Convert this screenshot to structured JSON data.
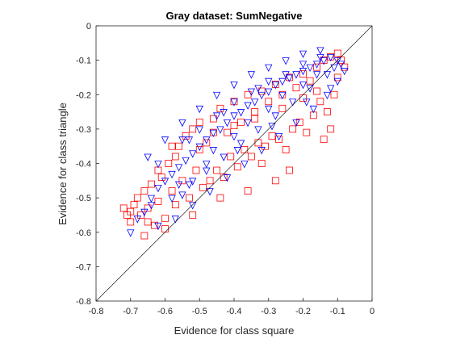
{
  "chart_data": {
    "type": "scatter",
    "title": "Gray dataset: SumNegative",
    "xlabel": "Evidence for class square",
    "ylabel": "Evidence for class triangle",
    "xlim": [
      -0.8,
      0
    ],
    "ylim": [
      -0.8,
      0
    ],
    "xticks": [
      "-0.8",
      "-0.7",
      "-0.6",
      "-0.5",
      "-0.4",
      "-0.3",
      "-0.2",
      "-0.1",
      "0"
    ],
    "yticks": [
      "-0.8",
      "-0.7",
      "-0.6",
      "-0.5",
      "-0.4",
      "-0.3",
      "-0.2",
      "-0.1",
      "0"
    ],
    "grid": false,
    "reference_line": {
      "from": [
        -0.8,
        -0.8
      ],
      "to": [
        0,
        0
      ]
    },
    "series": [
      {
        "marker": "square",
        "color": "#ff0000",
        "points": [
          [
            -0.72,
            -0.53
          ],
          [
            -0.71,
            -0.55
          ],
          [
            -0.7,
            -0.57
          ],
          [
            -0.7,
            -0.54
          ],
          [
            -0.69,
            -0.52
          ],
          [
            -0.68,
            -0.5
          ],
          [
            -0.67,
            -0.55
          ],
          [
            -0.66,
            -0.61
          ],
          [
            -0.66,
            -0.48
          ],
          [
            -0.65,
            -0.53
          ],
          [
            -0.64,
            -0.46
          ],
          [
            -0.63,
            -0.58
          ],
          [
            -0.62,
            -0.51
          ],
          [
            -0.61,
            -0.44
          ],
          [
            -0.6,
            -0.56
          ],
          [
            -0.59,
            -0.4
          ],
          [
            -0.58,
            -0.48
          ],
          [
            -0.57,
            -0.38
          ],
          [
            -0.57,
            -0.52
          ],
          [
            -0.56,
            -0.35
          ],
          [
            -0.55,
            -0.45
          ],
          [
            -0.54,
            -0.32
          ],
          [
            -0.53,
            -0.5
          ],
          [
            -0.52,
            -0.3
          ],
          [
            -0.51,
            -0.42
          ],
          [
            -0.5,
            -0.28
          ],
          [
            -0.49,
            -0.47
          ],
          [
            -0.48,
            -0.34
          ],
          [
            -0.47,
            -0.45
          ],
          [
            -0.46,
            -0.27
          ],
          [
            -0.45,
            -0.42
          ],
          [
            -0.44,
            -0.24
          ],
          [
            -0.43,
            -0.44
          ],
          [
            -0.42,
            -0.31
          ],
          [
            -0.41,
            -0.38
          ],
          [
            -0.4,
            -0.22
          ],
          [
            -0.39,
            -0.41
          ],
          [
            -0.38,
            -0.28
          ],
          [
            -0.37,
            -0.36
          ],
          [
            -0.36,
            -0.2
          ],
          [
            -0.35,
            -0.38
          ],
          [
            -0.34,
            -0.25
          ],
          [
            -0.33,
            -0.34
          ],
          [
            -0.32,
            -0.19
          ],
          [
            -0.31,
            -0.35
          ],
          [
            -0.3,
            -0.22
          ],
          [
            -0.29,
            -0.32
          ],
          [
            -0.28,
            -0.17
          ],
          [
            -0.27,
            -0.33
          ],
          [
            -0.26,
            -0.2
          ],
          [
            -0.25,
            -0.36
          ],
          [
            -0.24,
            -0.15
          ],
          [
            -0.23,
            -0.3
          ],
          [
            -0.22,
            -0.18
          ],
          [
            -0.21,
            -0.28
          ],
          [
            -0.2,
            -0.14
          ],
          [
            -0.19,
            -0.31
          ],
          [
            -0.18,
            -0.16
          ],
          [
            -0.17,
            -0.26
          ],
          [
            -0.16,
            -0.12
          ],
          [
            -0.15,
            -0.22
          ],
          [
            -0.14,
            -0.1
          ],
          [
            -0.13,
            -0.25
          ],
          [
            -0.12,
            -0.09
          ],
          [
            -0.11,
            -0.2
          ],
          [
            -0.1,
            -0.08
          ],
          [
            -0.1,
            -0.15
          ],
          [
            -0.09,
            -0.1
          ],
          [
            -0.08,
            -0.12
          ],
          [
            -0.12,
            -0.3
          ],
          [
            -0.14,
            -0.33
          ],
          [
            -0.24,
            -0.42
          ],
          [
            -0.28,
            -0.45
          ],
          [
            -0.32,
            -0.4
          ],
          [
            -0.36,
            -0.48
          ],
          [
            -0.44,
            -0.5
          ],
          [
            -0.52,
            -0.55
          ],
          [
            -0.6,
            -0.59
          ],
          [
            -0.65,
            -0.57
          ],
          [
            -0.58,
            -0.35
          ],
          [
            -0.62,
            -0.42
          ],
          [
            -0.5,
            -0.36
          ],
          [
            -0.46,
            -0.31
          ],
          [
            -0.4,
            -0.29
          ],
          [
            -0.34,
            -0.27
          ],
          [
            -0.26,
            -0.24
          ],
          [
            -0.2,
            -0.21
          ],
          [
            -0.16,
            -0.19
          ]
        ]
      },
      {
        "marker": "triangle-down",
        "color": "#0000ff",
        "points": [
          [
            -0.7,
            -0.6
          ],
          [
            -0.68,
            -0.56
          ],
          [
            -0.66,
            -0.54
          ],
          [
            -0.64,
            -0.5
          ],
          [
            -0.62,
            -0.47
          ],
          [
            -0.6,
            -0.45
          ],
          [
            -0.58,
            -0.43
          ],
          [
            -0.56,
            -0.41
          ],
          [
            -0.54,
            -0.39
          ],
          [
            -0.52,
            -0.37
          ],
          [
            -0.5,
            -0.35
          ],
          [
            -0.48,
            -0.33
          ],
          [
            -0.46,
            -0.31
          ],
          [
            -0.44,
            -0.3
          ],
          [
            -0.42,
            -0.28
          ],
          [
            -0.4,
            -0.26
          ],
          [
            -0.38,
            -0.25
          ],
          [
            -0.36,
            -0.23
          ],
          [
            -0.34,
            -0.22
          ],
          [
            -0.32,
            -0.2
          ],
          [
            -0.3,
            -0.19
          ],
          [
            -0.28,
            -0.17
          ],
          [
            -0.26,
            -0.16
          ],
          [
            -0.24,
            -0.15
          ],
          [
            -0.22,
            -0.14
          ],
          [
            -0.2,
            -0.13
          ],
          [
            -0.18,
            -0.12
          ],
          [
            -0.16,
            -0.11
          ],
          [
            -0.14,
            -0.1
          ],
          [
            -0.12,
            -0.09
          ],
          [
            -0.15,
            -0.07
          ],
          [
            -0.2,
            -0.08
          ],
          [
            -0.25,
            -0.1
          ],
          [
            -0.3,
            -0.12
          ],
          [
            -0.35,
            -0.14
          ],
          [
            -0.4,
            -0.17
          ],
          [
            -0.45,
            -0.2
          ],
          [
            -0.5,
            -0.24
          ],
          [
            -0.55,
            -0.28
          ],
          [
            -0.6,
            -0.33
          ],
          [
            -0.65,
            -0.38
          ],
          [
            -0.62,
            -0.4
          ],
          [
            -0.55,
            -0.33
          ],
          [
            -0.5,
            -0.3
          ],
          [
            -0.45,
            -0.26
          ],
          [
            -0.4,
            -0.22
          ],
          [
            -0.35,
            -0.19
          ],
          [
            -0.3,
            -0.16
          ],
          [
            -0.25,
            -0.14
          ],
          [
            -0.2,
            -0.11
          ],
          [
            -0.15,
            -0.09
          ],
          [
            -0.1,
            -0.1
          ],
          [
            -0.08,
            -0.13
          ],
          [
            -0.1,
            -0.16
          ],
          [
            -0.13,
            -0.2
          ],
          [
            -0.17,
            -0.24
          ],
          [
            -0.22,
            -0.28
          ],
          [
            -0.27,
            -0.32
          ],
          [
            -0.32,
            -0.36
          ],
          [
            -0.37,
            -0.4
          ],
          [
            -0.42,
            -0.44
          ],
          [
            -0.47,
            -0.48
          ],
          [
            -0.52,
            -0.52
          ],
          [
            -0.57,
            -0.56
          ],
          [
            -0.62,
            -0.58
          ],
          [
            -0.58,
            -0.5
          ],
          [
            -0.53,
            -0.46
          ],
          [
            -0.48,
            -0.42
          ],
          [
            -0.43,
            -0.38
          ],
          [
            -0.38,
            -0.34
          ],
          [
            -0.33,
            -0.3
          ],
          [
            -0.28,
            -0.26
          ],
          [
            -0.23,
            -0.22
          ],
          [
            -0.18,
            -0.18
          ],
          [
            -0.13,
            -0.14
          ],
          [
            -0.11,
            -0.12
          ],
          [
            -0.26,
            -0.2
          ],
          [
            -0.36,
            -0.28
          ],
          [
            -0.46,
            -0.36
          ],
          [
            -0.56,
            -0.46
          ],
          [
            -0.64,
            -0.52
          ],
          [
            -0.4,
            -0.32
          ],
          [
            -0.3,
            -0.24
          ],
          [
            -0.2,
            -0.17
          ],
          [
            -0.16,
            -0.14
          ],
          [
            -0.33,
            -0.18
          ],
          [
            -0.43,
            -0.25
          ],
          [
            -0.53,
            -0.33
          ],
          [
            -0.55,
            -0.49
          ],
          [
            -0.52,
            -0.45
          ],
          [
            -0.48,
            -0.4
          ],
          [
            -0.39,
            -0.36
          ],
          [
            -0.29,
            -0.29
          ],
          [
            -0.19,
            -0.22
          ],
          [
            -0.12,
            -0.18
          ],
          [
            -0.09,
            -0.11
          ]
        ]
      }
    ]
  }
}
